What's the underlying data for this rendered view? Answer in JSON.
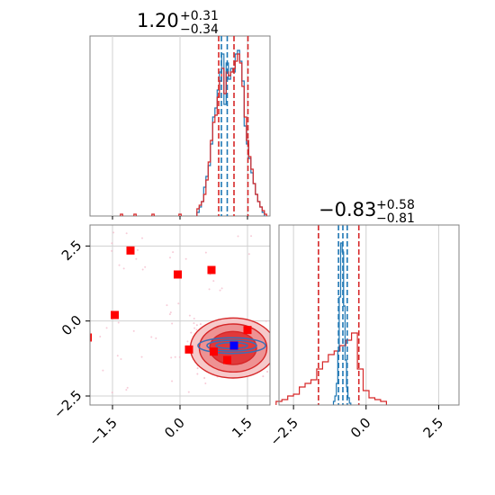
{
  "chart_data": {
    "type": "corner",
    "parameters": [
      {
        "title_value": "1.20",
        "title_plus": "+0.31",
        "title_minus": "−0.34",
        "median": 1.2,
        "lo": 0.86,
        "hi": 1.51
      },
      {
        "title_value": "−0.83",
        "title_plus": "+0.58",
        "title_minus": "−0.81",
        "median": -0.83,
        "lo": -1.64,
        "hi": -0.25
      }
    ],
    "axes": {
      "x1_range": [
        -2.0,
        2.0
      ],
      "x2_range": [
        -3.0,
        3.2
      ],
      "y2_range": [
        -2.8,
        3.2
      ],
      "x1_ticks": [
        -1.5,
        0.0,
        1.5
      ],
      "x1_tick_labels": [
        "−1.5",
        "0.0",
        "1.5"
      ],
      "y2_ticks": [
        -2.5,
        0.0,
        2.5
      ],
      "y2_tick_labels": [
        "−2.5",
        "0.0",
        "2.5"
      ],
      "x2_ticks": [
        -2.5,
        0.0,
        2.5
      ],
      "x2_tick_labels": [
        "−2.5",
        "0.0",
        "2.5"
      ],
      "grid": true
    },
    "histograms": {
      "top_blue": {
        "color": "#1f77b4",
        "bins": [
          [
            0.4,
            0.02
          ],
          [
            0.45,
            0.05
          ],
          [
            0.5,
            0.08
          ],
          [
            0.55,
            0.16
          ],
          [
            0.6,
            0.22
          ],
          [
            0.65,
            0.28
          ],
          [
            0.7,
            0.4
          ],
          [
            0.75,
            0.55
          ],
          [
            0.8,
            0.6
          ],
          [
            0.85,
            0.7
          ],
          [
            0.9,
            0.8
          ],
          [
            0.95,
            0.9
          ],
          [
            1.0,
            0.62
          ],
          [
            1.05,
            0.85
          ],
          [
            1.1,
            0.76
          ],
          [
            1.15,
            0.82
          ],
          [
            1.2,
            0.8
          ],
          [
            1.25,
            0.9
          ],
          [
            1.3,
            0.92
          ],
          [
            1.35,
            0.86
          ],
          [
            1.4,
            0.75
          ],
          [
            1.45,
            0.5
          ],
          [
            1.5,
            0.4
          ],
          [
            1.55,
            0.32
          ],
          [
            1.6,
            0.24
          ],
          [
            1.65,
            0.18
          ],
          [
            1.7,
            0.12
          ],
          [
            1.75,
            0.08
          ],
          [
            1.8,
            0.05
          ],
          [
            1.85,
            0.02
          ]
        ],
        "bin_width": 0.05
      },
      "top_red": {
        "color": "#d62728",
        "bins": [
          [
            -1.3,
            0.01
          ],
          [
            -1.0,
            0.01
          ],
          [
            -0.6,
            0.01
          ],
          [
            0.0,
            0.01
          ],
          [
            0.4,
            0.04
          ],
          [
            0.45,
            0.06
          ],
          [
            0.5,
            0.08
          ],
          [
            0.55,
            0.12
          ],
          [
            0.6,
            0.2
          ],
          [
            0.65,
            0.3
          ],
          [
            0.7,
            0.42
          ],
          [
            0.75,
            0.52
          ],
          [
            0.8,
            0.56
          ],
          [
            0.85,
            0.66
          ],
          [
            0.9,
            0.75
          ],
          [
            0.95,
            0.82
          ],
          [
            1.0,
            0.68
          ],
          [
            1.05,
            0.8
          ],
          [
            1.1,
            0.78
          ],
          [
            1.15,
            0.8
          ],
          [
            1.2,
            0.82
          ],
          [
            1.25,
            0.86
          ],
          [
            1.3,
            0.9
          ],
          [
            1.35,
            0.85
          ],
          [
            1.4,
            0.72
          ],
          [
            1.45,
            0.55
          ],
          [
            1.5,
            0.42
          ],
          [
            1.55,
            0.33
          ],
          [
            1.6,
            0.26
          ],
          [
            1.65,
            0.18
          ],
          [
            1.7,
            0.12
          ],
          [
            1.75,
            0.08
          ],
          [
            1.8,
            0.05
          ],
          [
            1.85,
            0.03
          ],
          [
            1.9,
            0.01
          ]
        ],
        "bin_width": 0.05
      },
      "right_blue": {
        "color": "#1f77b4",
        "bins": [
          [
            -1.1,
            0.02
          ],
          [
            -1.05,
            0.05
          ],
          [
            -1.0,
            0.12
          ],
          [
            -0.95,
            0.3
          ],
          [
            -0.9,
            0.6
          ],
          [
            -0.85,
            0.9
          ],
          [
            -0.8,
            0.85
          ],
          [
            -0.75,
            0.55
          ],
          [
            -0.7,
            0.25
          ],
          [
            -0.65,
            0.1
          ],
          [
            -0.6,
            0.04
          ],
          [
            -0.55,
            0.01
          ]
        ],
        "bin_width": 0.05
      },
      "right_red": {
        "color": "#d62728",
        "bins": [
          [
            -3.0,
            0.02
          ],
          [
            -2.8,
            0.03
          ],
          [
            -2.6,
            0.05
          ],
          [
            -2.4,
            0.06
          ],
          [
            -2.2,
            0.1
          ],
          [
            -2.0,
            0.12
          ],
          [
            -1.8,
            0.14
          ],
          [
            -1.6,
            0.2
          ],
          [
            -1.4,
            0.24
          ],
          [
            -1.2,
            0.28
          ],
          [
            -1.0,
            0.3
          ],
          [
            -0.8,
            0.33
          ],
          [
            -0.6,
            0.36
          ],
          [
            -0.4,
            0.4
          ],
          [
            -0.2,
            0.2
          ],
          [
            0.0,
            0.08
          ],
          [
            0.2,
            0.04
          ],
          [
            0.4,
            0.03
          ],
          [
            0.6,
            0.02
          ]
        ],
        "bin_width": 0.2
      }
    },
    "contours": {
      "red_center": [
        1.18,
        -0.9
      ],
      "red_levels": [
        {
          "rx": 0.95,
          "ry": 1.0,
          "fill": "#f6c9ca",
          "opacity": 1.0
        },
        {
          "rx": 0.75,
          "ry": 0.8,
          "fill": "#ee9293",
          "opacity": 1.0
        },
        {
          "rx": 0.52,
          "ry": 0.55,
          "fill": "#e0393a",
          "opacity": 1.0
        }
      ],
      "blue_center": [
        1.15,
        -0.82
      ],
      "blue_levels": [
        {
          "rx": 0.75,
          "ry": 0.26
        },
        {
          "rx": 0.55,
          "ry": 0.18
        },
        {
          "rx": 0.35,
          "ry": 0.1
        }
      ]
    },
    "red_squares": [
      [
        -1.1,
        2.35
      ],
      [
        -0.05,
        1.55
      ],
      [
        0.7,
        1.7
      ],
      [
        -1.45,
        0.2
      ],
      [
        -2.05,
        -0.55
      ],
      [
        0.2,
        -0.95
      ],
      [
        0.75,
        -1.02
      ],
      [
        1.05,
        -1.3
      ],
      [
        1.5,
        -0.3
      ]
    ],
    "blue_square": [
      1.2,
      -0.82
    ]
  }
}
